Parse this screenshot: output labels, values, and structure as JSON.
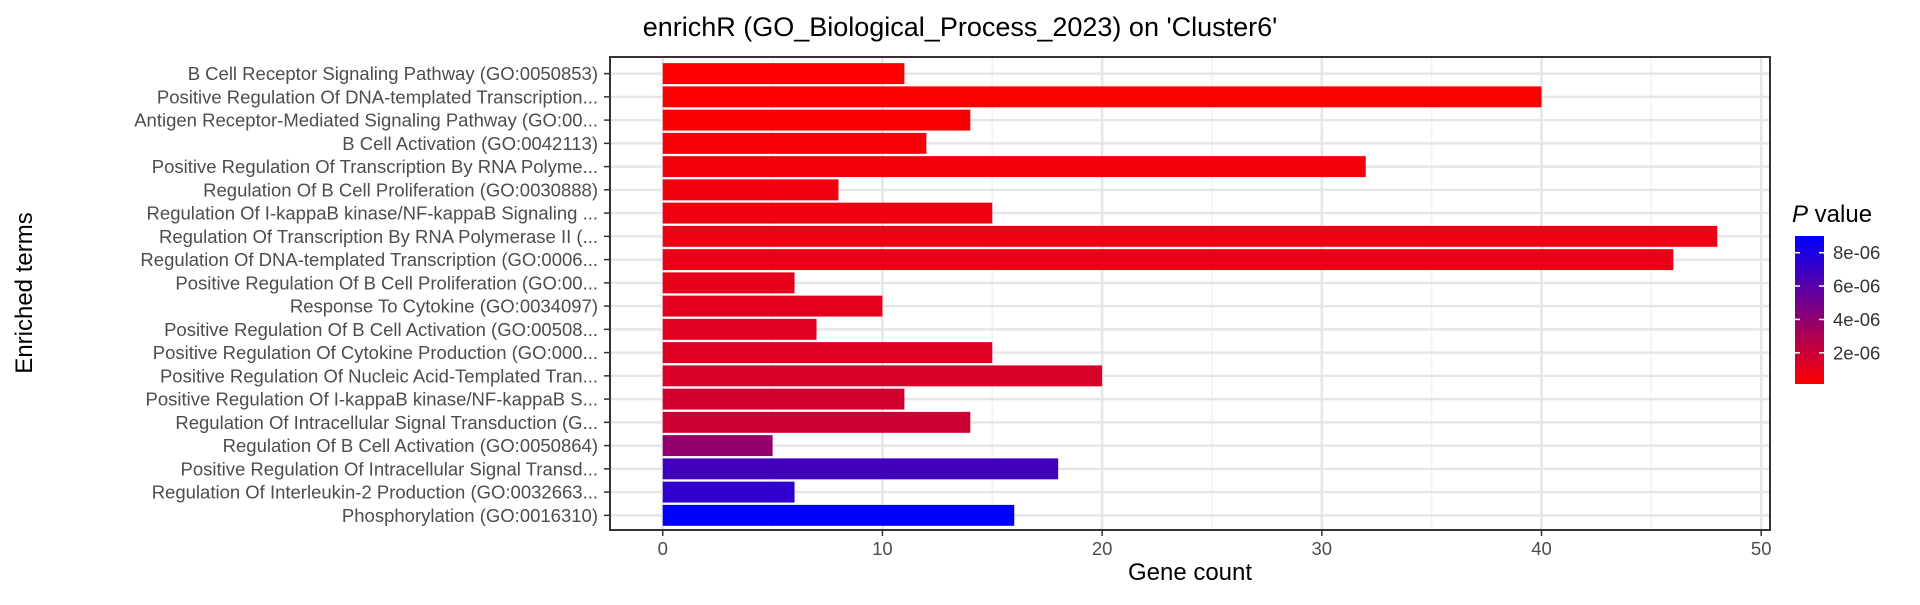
{
  "chart_data": {
    "type": "bar",
    "orientation": "horizontal",
    "title": "enrichR (GO_Biological_Process_2023) on 'Cluster6'",
    "xlabel": "Gene count",
    "ylabel": "Enriched terms",
    "xlim": [
      -2.4,
      50.4
    ],
    "xticks": [
      0,
      10,
      20,
      30,
      40,
      50
    ],
    "grid": true,
    "legend": {
      "title_italic": "P",
      "title_rest": " value",
      "position": "right",
      "colorscale": [
        "#ff0000",
        "#0000ff"
      ],
      "range": [
        1.3e-07,
        9e-06
      ],
      "ticks": [
        2e-06,
        4e-06,
        6e-06,
        8e-06
      ],
      "tick_labels": [
        "2e-06",
        "4e-06",
        "6e-06",
        "8e-06"
      ]
    },
    "categories": [
      "B Cell Receptor Signaling Pathway (GO:0050853)",
      "Positive Regulation Of DNA-templated Transcription...",
      "Antigen Receptor-Mediated Signaling Pathway (GO:00...",
      "B Cell Activation (GO:0042113)",
      "Positive Regulation Of Transcription By RNA Polyme...",
      "Regulation Of B Cell Proliferation (GO:0030888)",
      "Regulation Of I-kappaB kinase/NF-kappaB Signaling ...",
      "Regulation Of Transcription By RNA Polymerase II (...",
      "Regulation Of DNA-templated Transcription (GO:0006...",
      "Positive Regulation Of B Cell Proliferation (GO:00...",
      "Response To Cytokine (GO:0034097)",
      "Positive Regulation Of B Cell Activation (GO:00508...",
      "Positive Regulation Of Cytokine Production (GO:000...",
      "Positive Regulation Of Nucleic Acid-Templated Tran...",
      "Positive Regulation Of I-kappaB kinase/NF-kappaB S...",
      "Regulation Of Intracellular Signal Transduction (G...",
      "Regulation Of B Cell Activation (GO:0050864)",
      "Positive Regulation Of Intracellular Signal Transd...",
      "Regulation Of Interleukin-2 Production (GO:0032663...",
      "Phosphorylation (GO:0016310)"
    ],
    "values": [
      11,
      40,
      14,
      12,
      32,
      8,
      15,
      48,
      46,
      6,
      10,
      7,
      15,
      20,
      11,
      14,
      5,
      18,
      6,
      16
    ],
    "p_values": [
      1.3e-07,
      2e-07,
      3e-07,
      4e-07,
      5e-07,
      6e-07,
      7e-07,
      8e-07,
      9e-07,
      1e-06,
      1.1e-06,
      1.2e-06,
      1.3e-06,
      1.5e-06,
      1.7e-06,
      1.9e-06,
      3.9e-06,
      6.7e-06,
      7.3e-06,
      9e-06
    ]
  }
}
